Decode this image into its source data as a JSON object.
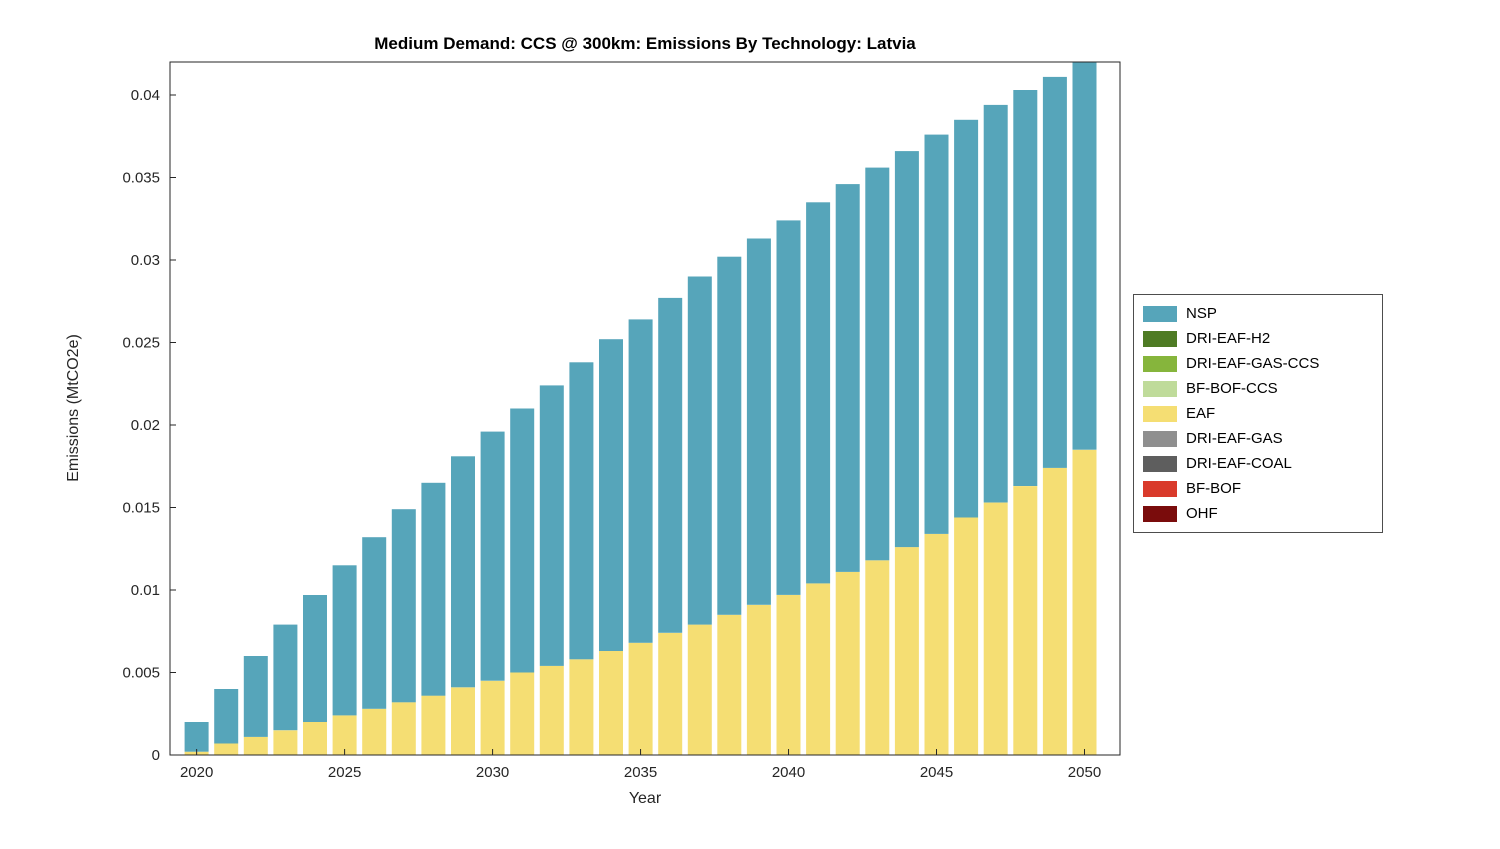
{
  "chart_data": {
    "type": "bar",
    "stacked": true,
    "title": "Medium Demand: CCS @ 300km: Emissions By Technology: Latvia",
    "xlabel": "Year",
    "ylabel": "Emissions (MtCO2e)",
    "xlim": [
      2019.1,
      2051.2
    ],
    "ylim": [
      0,
      0.042
    ],
    "x_ticks": [
      2020,
      2025,
      2030,
      2035,
      2040,
      2045,
      2050
    ],
    "y_ticks": [
      0,
      0.005,
      0.01,
      0.015,
      0.02,
      0.025,
      0.03,
      0.035,
      0.04
    ],
    "y_tick_labels": [
      "0",
      "0.005",
      "0.01",
      "0.015",
      "0.02",
      "0.025",
      "0.03",
      "0.035",
      "0.04"
    ],
    "grid": false,
    "axis_color": "#262626",
    "background": "#ffffff",
    "categories": [
      2020,
      2021,
      2022,
      2023,
      2024,
      2025,
      2026,
      2027,
      2028,
      2029,
      2030,
      2031,
      2032,
      2033,
      2034,
      2035,
      2036,
      2037,
      2038,
      2039,
      2040,
      2041,
      2042,
      2043,
      2044,
      2045,
      2046,
      2047,
      2048,
      2049,
      2050
    ],
    "series": [
      {
        "name": "EAF",
        "color": "#F5DE73",
        "values": [
          0.0002,
          0.0007,
          0.0011,
          0.0015,
          0.002,
          0.0024,
          0.0028,
          0.0032,
          0.0036,
          0.0041,
          0.0045,
          0.005,
          0.0054,
          0.0058,
          0.0063,
          0.0068,
          0.0074,
          0.0079,
          0.0085,
          0.0091,
          0.0097,
          0.0104,
          0.0111,
          0.0118,
          0.0126,
          0.0134,
          0.0144,
          0.0153,
          0.0163,
          0.0174,
          0.0185
        ]
      },
      {
        "name": "NSP",
        "color": "#56A5BA",
        "values": [
          0.0018,
          0.0033,
          0.0049,
          0.0064,
          0.0077,
          0.0091,
          0.0104,
          0.0117,
          0.0129,
          0.014,
          0.0151,
          0.016,
          0.017,
          0.018,
          0.0189,
          0.0196,
          0.0203,
          0.0211,
          0.0217,
          0.0222,
          0.0227,
          0.0231,
          0.0235,
          0.0238,
          0.024,
          0.0242,
          0.0241,
          0.0241,
          0.024,
          0.0237,
          0.0235
        ]
      },
      {
        "name": "DRI-EAF-H2",
        "color": "#4E7B24",
        "values": [
          0,
          0,
          0,
          0,
          0,
          0,
          0,
          0,
          0,
          0,
          0,
          0,
          0,
          0,
          0,
          0,
          0,
          0,
          0,
          0,
          0,
          0,
          0,
          0,
          0,
          0,
          0,
          0,
          0,
          0,
          0
        ]
      },
      {
        "name": "DRI-EAF-GAS-CCS",
        "color": "#86B53C",
        "values": [
          0,
          0,
          0,
          0,
          0,
          0,
          0,
          0,
          0,
          0,
          0,
          0,
          0,
          0,
          0,
          0,
          0,
          0,
          0,
          0,
          0,
          0,
          0,
          0,
          0,
          0,
          0,
          0,
          0,
          0,
          0
        ]
      },
      {
        "name": "BF-BOF-CCS",
        "color": "#BFDB9A",
        "values": [
          0,
          0,
          0,
          0,
          0,
          0,
          0,
          0,
          0,
          0,
          0,
          0,
          0,
          0,
          0,
          0,
          0,
          0,
          0,
          0,
          0,
          0,
          0,
          0,
          0,
          0,
          0,
          0,
          0,
          0,
          0
        ]
      },
      {
        "name": "DRI-EAF-GAS",
        "color": "#8F8F8F",
        "values": [
          0,
          0,
          0,
          0,
          0,
          0,
          0,
          0,
          0,
          0,
          0,
          0,
          0,
          0,
          0,
          0,
          0,
          0,
          0,
          0,
          0,
          0,
          0,
          0,
          0,
          0,
          0,
          0,
          0,
          0,
          0
        ]
      },
      {
        "name": "DRI-EAF-COAL",
        "color": "#5E5E5E",
        "values": [
          0,
          0,
          0,
          0,
          0,
          0,
          0,
          0,
          0,
          0,
          0,
          0,
          0,
          0,
          0,
          0,
          0,
          0,
          0,
          0,
          0,
          0,
          0,
          0,
          0,
          0,
          0,
          0,
          0,
          0,
          0
        ]
      },
      {
        "name": "BF-BOF",
        "color": "#D93A2B",
        "values": [
          0,
          0,
          0,
          0,
          0,
          0,
          0,
          0,
          0,
          0,
          0,
          0,
          0,
          0,
          0,
          0,
          0,
          0,
          0,
          0,
          0,
          0,
          0,
          0,
          0,
          0,
          0,
          0,
          0,
          0,
          0
        ]
      },
      {
        "name": "OHF",
        "color": "#7A0C0C",
        "values": [
          0,
          0,
          0,
          0,
          0,
          0,
          0,
          0,
          0,
          0,
          0,
          0,
          0,
          0,
          0,
          0,
          0,
          0,
          0,
          0,
          0,
          0,
          0,
          0,
          0,
          0,
          0,
          0,
          0,
          0,
          0
        ]
      }
    ],
    "legend": {
      "position": "right-outside",
      "entries": [
        {
          "label": "NSP",
          "color": "#56A5BA"
        },
        {
          "label": "DRI-EAF-H2",
          "color": "#4E7B24"
        },
        {
          "label": "DRI-EAF-GAS-CCS",
          "color": "#86B53C"
        },
        {
          "label": "BF-BOF-CCS",
          "color": "#BFDB9A"
        },
        {
          "label": "EAF",
          "color": "#F5DE73"
        },
        {
          "label": "DRI-EAF-GAS",
          "color": "#8F8F8F"
        },
        {
          "label": "DRI-EAF-COAL",
          "color": "#5E5E5E"
        },
        {
          "label": "BF-BOF",
          "color": "#D93A2B"
        },
        {
          "label": "OHF",
          "color": "#7A0C0C"
        }
      ]
    }
  }
}
